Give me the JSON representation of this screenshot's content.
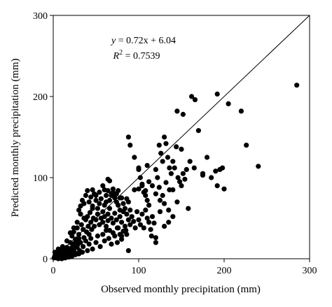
{
  "chart_data": {
    "type": "scatter",
    "xlabel": "Observed monthly precipitation (mm)",
    "ylabel": "Predicted monthly precipitation (mm)",
    "xlim": [
      0,
      300
    ],
    "ylim": [
      0,
      300
    ],
    "x_ticks": [
      0,
      100,
      200,
      300
    ],
    "y_ticks": [
      0,
      100,
      200,
      300
    ],
    "grid": false,
    "reference_line": {
      "x": [
        0,
        300
      ],
      "y": [
        0,
        300
      ]
    },
    "equation": {
      "y_part": "y",
      "rhs_part": " = 0.72x + 6.04",
      "r2_part": "R",
      "r2_sup": "2",
      "r2_value": " = 0.7539"
    },
    "marker_color": "#000000",
    "points": [
      [
        1,
        1
      ],
      [
        2,
        4
      ],
      [
        3,
        2
      ],
      [
        4,
        6
      ],
      [
        5,
        3
      ],
      [
        6,
        8
      ],
      [
        7,
        5
      ],
      [
        8,
        10
      ],
      [
        9,
        2
      ],
      [
        10,
        12
      ],
      [
        11,
        6
      ],
      [
        12,
        9
      ],
      [
        13,
        4
      ],
      [
        14,
        11
      ],
      [
        15,
        7
      ],
      [
        16,
        14
      ],
      [
        17,
        3
      ],
      [
        18,
        9
      ],
      [
        19,
        12
      ],
      [
        20,
        6
      ],
      [
        2,
        8
      ],
      [
        4,
        1
      ],
      [
        6,
        12
      ],
      [
        8,
        3
      ],
      [
        11,
        15
      ],
      [
        13,
        8
      ],
      [
        15,
        2
      ],
      [
        17,
        10
      ],
      [
        19,
        5
      ],
      [
        21,
        13
      ],
      [
        22,
        8
      ],
      [
        23,
        16
      ],
      [
        24,
        11
      ],
      [
        25,
        19
      ],
      [
        26,
        7
      ],
      [
        27,
        22
      ],
      [
        28,
        14
      ],
      [
        29,
        18
      ],
      [
        30,
        25
      ],
      [
        31,
        10
      ],
      [
        20,
        20
      ],
      [
        22,
        28
      ],
      [
        24,
        33
      ],
      [
        26,
        24
      ],
      [
        28,
        38
      ],
      [
        30,
        30
      ],
      [
        32,
        20
      ],
      [
        33,
        42
      ],
      [
        35,
        36
      ],
      [
        36,
        26
      ],
      [
        38,
        48
      ],
      [
        39,
        33
      ],
      [
        40,
        52
      ],
      [
        41,
        40
      ],
      [
        42,
        30
      ],
      [
        43,
        57
      ],
      [
        44,
        45
      ],
      [
        45,
        36
      ],
      [
        46,
        62
      ],
      [
        47,
        50
      ],
      [
        30,
        60
      ],
      [
        32,
        65
      ],
      [
        34,
        72
      ],
      [
        36,
        68
      ],
      [
        38,
        78
      ],
      [
        40,
        84
      ],
      [
        42,
        70
      ],
      [
        44,
        76
      ],
      [
        46,
        65
      ],
      [
        48,
        80
      ],
      [
        50,
        72
      ],
      [
        52,
        62
      ],
      [
        54,
        68
      ],
      [
        56,
        74
      ],
      [
        58,
        58
      ],
      [
        60,
        66
      ],
      [
        62,
        70
      ],
      [
        64,
        55
      ],
      [
        66,
        62
      ],
      [
        68,
        78
      ],
      [
        48,
        40
      ],
      [
        50,
        48
      ],
      [
        52,
        55
      ],
      [
        54,
        42
      ],
      [
        56,
        50
      ],
      [
        58,
        45
      ],
      [
        60,
        52
      ],
      [
        62,
        40
      ],
      [
        64,
        47
      ],
      [
        66,
        35
      ],
      [
        68,
        50
      ],
      [
        70,
        44
      ],
      [
        72,
        56
      ],
      [
        74,
        48
      ],
      [
        76,
        38
      ],
      [
        78,
        52
      ],
      [
        80,
        45
      ],
      [
        82,
        58
      ],
      [
        84,
        40
      ],
      [
        86,
        30
      ],
      [
        35,
        15
      ],
      [
        38,
        22
      ],
      [
        40,
        10
      ],
      [
        42,
        18
      ],
      [
        44,
        25
      ],
      [
        46,
        12
      ],
      [
        50,
        20
      ],
      [
        52,
        28
      ],
      [
        55,
        15
      ],
      [
        58,
        30
      ],
      [
        60,
        22
      ],
      [
        62,
        35
      ],
      [
        65,
        25
      ],
      [
        68,
        18
      ],
      [
        70,
        32
      ],
      [
        72,
        28
      ],
      [
        75,
        38
      ],
      [
        78,
        30
      ],
      [
        80,
        24
      ],
      [
        82,
        34
      ],
      [
        70,
        82
      ],
      [
        72,
        75
      ],
      [
        74,
        70
      ],
      [
        76,
        66
      ],
      [
        78,
        60
      ],
      [
        80,
        75
      ],
      [
        82,
        68
      ],
      [
        84,
        62
      ],
      [
        86,
        55
      ],
      [
        88,
        48
      ],
      [
        90,
        42
      ],
      [
        92,
        52
      ],
      [
        94,
        46
      ],
      [
        96,
        38
      ],
      [
        98,
        58
      ],
      [
        88,
        70
      ],
      [
        85,
        35
      ],
      [
        80,
        28
      ],
      [
        75,
        20
      ],
      [
        88,
        10
      ],
      [
        60,
        85
      ],
      [
        62,
        78
      ],
      [
        64,
        84
      ],
      [
        66,
        72
      ],
      [
        68,
        80
      ],
      [
        70,
        86
      ],
      [
        72,
        78
      ],
      [
        74,
        80
      ],
      [
        76,
        84
      ],
      [
        78,
        75
      ],
      [
        88,
        150
      ],
      [
        90,
        140
      ],
      [
        95,
        125
      ],
      [
        100,
        110
      ],
      [
        102,
        100
      ],
      [
        104,
        90
      ],
      [
        106,
        82
      ],
      [
        108,
        78
      ],
      [
        110,
        72
      ],
      [
        112,
        66
      ],
      [
        100,
        48
      ],
      [
        102,
        42
      ],
      [
        104,
        55
      ],
      [
        106,
        38
      ],
      [
        108,
        60
      ],
      [
        110,
        50
      ],
      [
        112,
        45
      ],
      [
        114,
        36
      ],
      [
        116,
        52
      ],
      [
        118,
        44
      ],
      [
        120,
        110
      ],
      [
        122,
        100
      ],
      [
        124,
        140
      ],
      [
        126,
        130
      ],
      [
        128,
        120
      ],
      [
        130,
        150
      ],
      [
        132,
        142
      ],
      [
        134,
        125
      ],
      [
        136,
        112
      ],
      [
        138,
        105
      ],
      [
        100,
        86
      ],
      [
        104,
        92
      ],
      [
        108,
        84
      ],
      [
        112,
        95
      ],
      [
        116,
        90
      ],
      [
        120,
        80
      ],
      [
        124,
        88
      ],
      [
        128,
        78
      ],
      [
        132,
        94
      ],
      [
        136,
        85
      ],
      [
        140,
        120
      ],
      [
        142,
        112
      ],
      [
        144,
        138
      ],
      [
        146,
        100
      ],
      [
        148,
        95
      ],
      [
        150,
        135
      ],
      [
        152,
        105
      ],
      [
        154,
        98
      ],
      [
        156,
        110
      ],
      [
        158,
        62
      ],
      [
        120,
        26
      ],
      [
        125,
        72
      ],
      [
        130,
        68
      ],
      [
        135,
        60
      ],
      [
        140,
        85
      ],
      [
        145,
        70
      ],
      [
        150,
        90
      ],
      [
        160,
        120
      ],
      [
        165,
        112
      ],
      [
        170,
        158
      ],
      [
        175,
        105
      ],
      [
        180,
        125
      ],
      [
        185,
        100
      ],
      [
        190,
        108
      ],
      [
        192,
        90
      ],
      [
        195,
        110
      ],
      [
        198,
        112
      ],
      [
        200,
        86
      ],
      [
        162,
        200
      ],
      [
        166,
        196
      ],
      [
        145,
        182
      ],
      [
        152,
        178
      ],
      [
        192,
        203
      ],
      [
        205,
        191
      ],
      [
        220,
        182
      ],
      [
        226,
        140
      ],
      [
        240,
        114
      ],
      [
        285,
        214
      ],
      [
        175,
        103
      ],
      [
        100,
        112
      ],
      [
        110,
        115
      ],
      [
        95,
        85
      ],
      [
        90,
        60
      ],
      [
        86,
        74
      ],
      [
        120,
        20
      ],
      [
        130,
        40
      ],
      [
        140,
        52
      ],
      [
        135,
        45
      ],
      [
        125,
        58
      ],
      [
        115,
        28
      ],
      [
        10,
        0
      ],
      [
        14,
        1
      ],
      [
        18,
        2
      ],
      [
        22,
        3
      ],
      [
        26,
        5
      ],
      [
        6,
        0
      ],
      [
        30,
        6
      ],
      [
        34,
        8
      ],
      [
        16,
        22
      ],
      [
        20,
        32
      ],
      [
        24,
        38
      ],
      [
        28,
        45
      ],
      [
        32,
        55
      ],
      [
        36,
        50
      ],
      [
        46,
        85
      ],
      [
        50,
        78
      ],
      [
        54,
        82
      ],
      [
        58,
        90
      ],
      [
        64,
        98
      ],
      [
        66,
        96
      ]
    ]
  }
}
